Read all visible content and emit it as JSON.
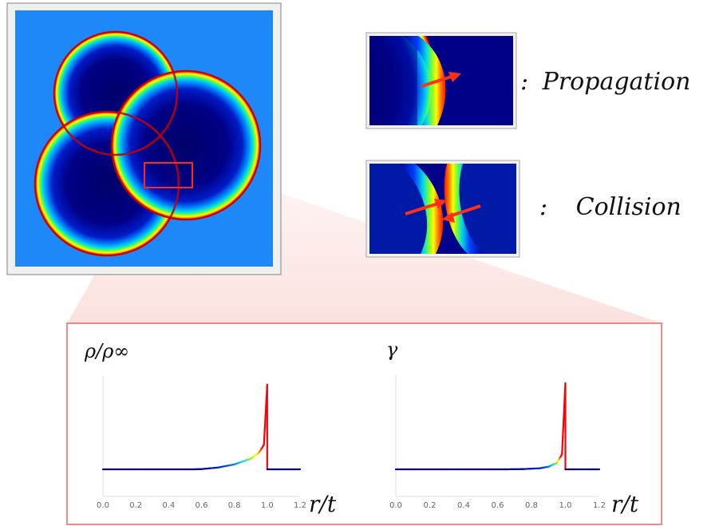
{
  "legend": {
    "propagation": {
      "colon": ":",
      "label": "Propagation"
    },
    "collision": {
      "colon": ":",
      "label": "Collision"
    }
  },
  "colors": {
    "background_blue": "#1e90ff",
    "bubble_interior": "#00008b",
    "wall_red": "#e8190f",
    "zoom_fill": "#f7c9c4",
    "panel_border": "#f08a85"
  },
  "chart_data": [
    {
      "type": "line",
      "ylabel": "ρ/ρ∞",
      "xlabel": "r/t",
      "xlim": [
        0.0,
        1.2
      ],
      "xticks": [
        "0.0",
        "0.2",
        "0.4",
        "0.6",
        "0.8",
        "1.0",
        "1.2"
      ],
      "color_gradient": [
        "#00008b",
        "#0050ff",
        "#00d0ff",
        "#7fff00",
        "#ffff00",
        "#ff8000",
        "#ff0000"
      ],
      "series": [
        {
          "x": [
            0.0,
            0.55,
            0.6,
            0.7,
            0.8,
            0.9,
            0.95,
            0.98,
            1.0,
            1.0,
            1.2
          ],
          "y": [
            1.0,
            1.0,
            1.01,
            1.08,
            1.22,
            1.48,
            1.75,
            2.1,
            4.8,
            1.0,
            1.0
          ]
        }
      ]
    },
    {
      "type": "line",
      "ylabel": "γ",
      "xlabel": "r/t",
      "xlim": [
        0.0,
        1.2
      ],
      "xticks": [
        "0.0",
        "0.2",
        "0.4",
        "0.6",
        "0.8",
        "1.0",
        "1.2"
      ],
      "color_gradient": [
        "#00008b",
        "#0050ff",
        "#00d0ff",
        "#7fff00",
        "#ffff00",
        "#ff8000",
        "#ff0000"
      ],
      "series": [
        {
          "x": [
            0.0,
            0.65,
            0.75,
            0.85,
            0.9,
            0.95,
            0.98,
            1.0,
            1.0,
            1.2
          ],
          "y": [
            1.0,
            1.0,
            1.01,
            1.05,
            1.12,
            1.3,
            1.7,
            5.0,
            1.0,
            1.0
          ]
        }
      ]
    }
  ]
}
